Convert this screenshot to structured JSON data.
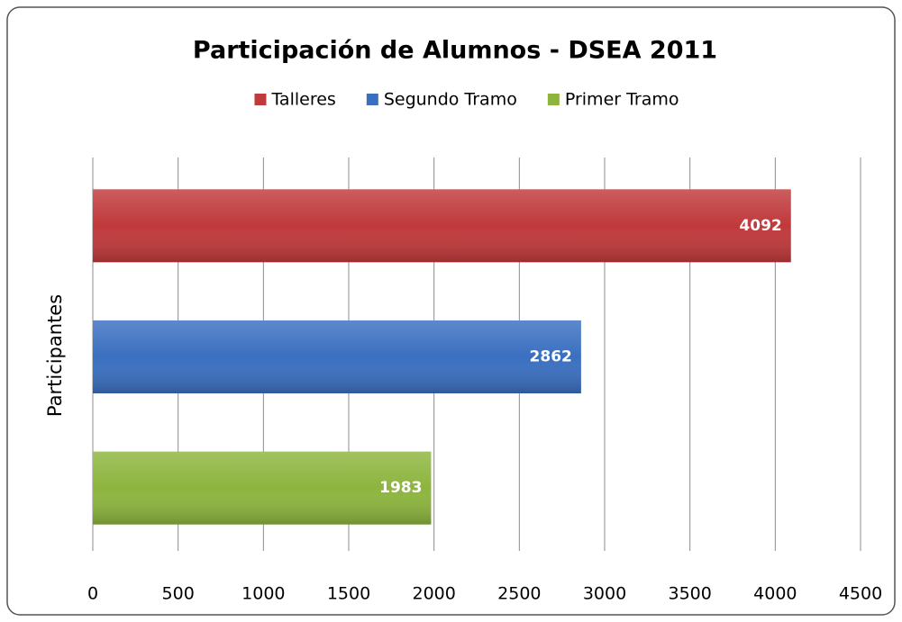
{
  "chart_data": {
    "type": "bar",
    "orientation": "horizontal",
    "title": "Participación de Alumnos - DSEA 2011",
    "ylabel": "Participantes",
    "categories": [
      null
    ],
    "series": [
      {
        "name": "Talleres",
        "color": "#c0393b",
        "values": [
          4092
        ]
      },
      {
        "name": "Segundo Tramo",
        "color": "#3a6fc0",
        "values": [
          2862
        ]
      },
      {
        "name": "Primer Tramo",
        "color": "#8db53e",
        "values": [
          1983
        ]
      }
    ],
    "xlim": [
      0,
      4500
    ],
    "xticks": [
      0,
      500,
      1000,
      1500,
      2000,
      2500,
      3000,
      3500,
      4000,
      4500
    ],
    "grid": true,
    "legend": "top"
  }
}
